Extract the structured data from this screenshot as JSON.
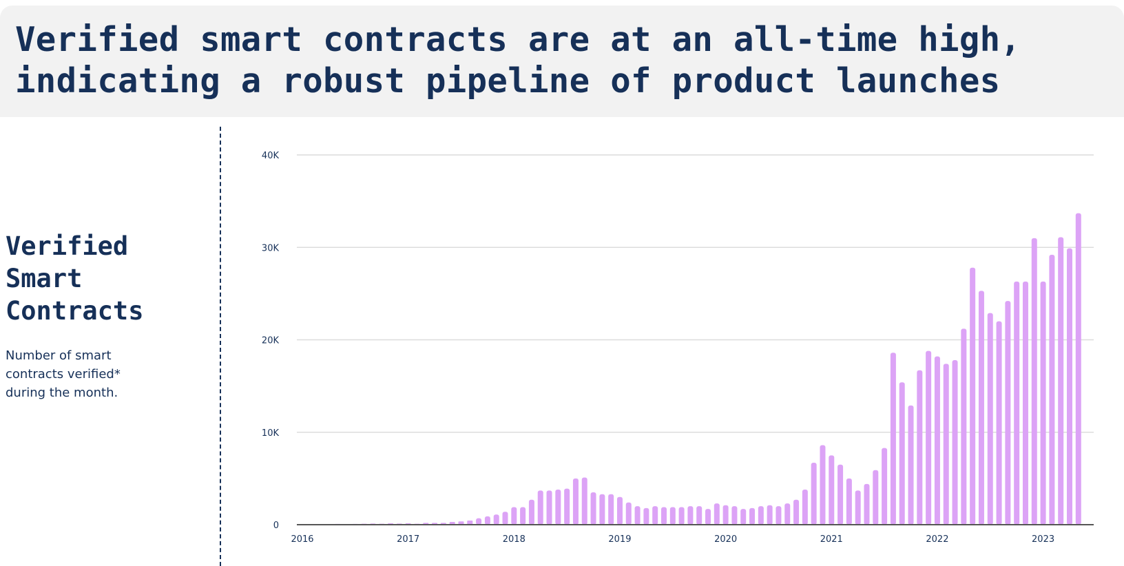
{
  "headline": "Verified smart contracts are at an all-time high,\nindicating a robust pipeline of product launches",
  "side": {
    "title": "Verified Smart Contracts",
    "description": "Number of smart contracts verified* during the month."
  },
  "colors": {
    "title_text": "#163058",
    "banner_bg": "#f2f2f2",
    "bar": "#dca3f6",
    "grid": "#dcdcdc"
  },
  "chart_data": {
    "type": "bar",
    "title": "",
    "xlabel": "",
    "ylabel": "",
    "ylim": [
      0,
      40000
    ],
    "yticks": [
      0,
      10000,
      20000,
      30000,
      40000
    ],
    "ytick_labels": [
      "0",
      "10K",
      "20K",
      "30K",
      "40K"
    ],
    "xtick_labels": [
      "2016",
      "2017",
      "2018",
      "2019",
      "2020",
      "2021",
      "2022",
      "2023"
    ],
    "grid": true,
    "legend": "none",
    "x_start": "2016-01",
    "x_end": "2023-03",
    "series": [
      {
        "values": [
          0,
          0,
          0,
          50,
          80,
          60,
          80,
          100,
          120,
          100,
          150,
          120,
          150,
          100,
          200,
          200,
          200,
          300,
          350,
          450,
          700,
          900,
          1100,
          1400,
          1900,
          1900,
          2700,
          3700,
          3700,
          3800,
          3900,
          5000,
          5100,
          3500,
          3300,
          3300,
          3000,
          2400,
          2000,
          1800,
          2000,
          1900,
          1900,
          1900,
          2000,
          2000,
          1700,
          2300,
          2100,
          2000,
          1700,
          1800,
          2000,
          2100,
          2000,
          2300,
          2700,
          3800,
          6700,
          8600,
          7500,
          6500,
          5000,
          3700,
          4400,
          5900,
          8300,
          18600,
          15400,
          12900,
          16700,
          18800,
          18200,
          17400,
          17800,
          21200,
          27800,
          25300,
          22900,
          22000,
          24200,
          26300,
          26300,
          31000,
          26300,
          29200,
          31100,
          29900,
          33700
        ]
      }
    ]
  }
}
